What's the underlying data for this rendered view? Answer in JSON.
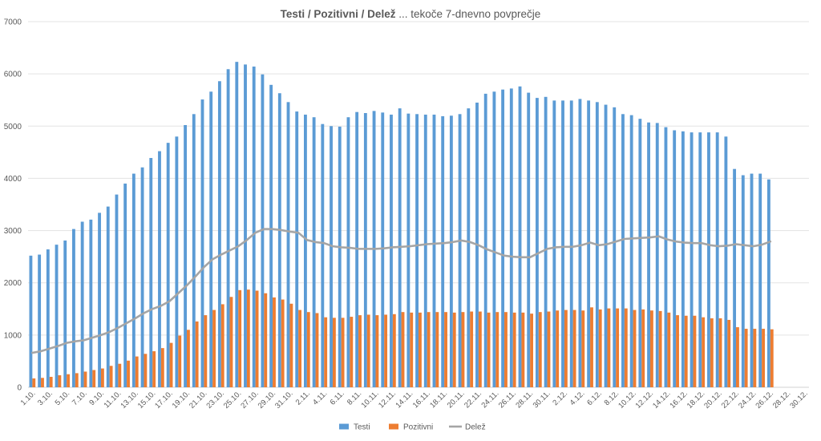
{
  "chart_data": {
    "type": "bar",
    "title_bold": "Testi / Pozitivni / Delež",
    "title_rest": " ... tekoče 7-dnevno povprečje",
    "ylim": [
      0,
      7000
    ],
    "yticks": [
      0,
      1000,
      2000,
      3000,
      4000,
      5000,
      6000,
      7000
    ],
    "grid": true,
    "legend_position": "bottom",
    "dates": [
      "1.10.",
      "2.10.",
      "3.10.",
      "4.10.",
      "5.10.",
      "6.10.",
      "7.10.",
      "8.10.",
      "9.10.",
      "10.10.",
      "11.10.",
      "12.10.",
      "13.10.",
      "14.10.",
      "15.10.",
      "16.10.",
      "17.10.",
      "18.10.",
      "19.10.",
      "20.10.",
      "21.10.",
      "22.10.",
      "23.10.",
      "24.10.",
      "25.10.",
      "26.10.",
      "27.10.",
      "28.10.",
      "29.10.",
      "30.10.",
      "31.10.",
      "1.11.",
      "2.11.",
      "3.11.",
      "4.11.",
      "5.11.",
      "6.11.",
      "7.11.",
      "8.11.",
      "9.11.",
      "10.11.",
      "11.11.",
      "12.11.",
      "13.11.",
      "14.11.",
      "15.11.",
      "16.11.",
      "17.11.",
      "18.11.",
      "19.11.",
      "20.11.",
      "21.11.",
      "22.11.",
      "23.11.",
      "24.11.",
      "25.11.",
      "26.11.",
      "27.11.",
      "28.11.",
      "29.11.",
      "30.11.",
      "1.12.",
      "2.12.",
      "3.12.",
      "4.12.",
      "5.12.",
      "6.12.",
      "7.12.",
      "8.12.",
      "9.12.",
      "10.12.",
      "11.12.",
      "12.12.",
      "13.12.",
      "14.12.",
      "15.12.",
      "16.12.",
      "17.12.",
      "18.12.",
      "19.12.",
      "20.12.",
      "21.12.",
      "22.12.",
      "23.12.",
      "24.12.",
      "25.12.",
      "26.12.",
      "27.12.",
      "28.12.",
      "29.12.",
      "30.12."
    ],
    "xtick_labels": [
      "1.10.",
      "3.10.",
      "5.10.",
      "7.10.",
      "9.10.",
      "11.10.",
      "13.10.",
      "15.10.",
      "17.10.",
      "19.10.",
      "21.10.",
      "23.10.",
      "25.10.",
      "27.10.",
      "29.10.",
      "31.10.",
      "2.11.",
      "4.11.",
      "6.11.",
      "8.11.",
      "10.11.",
      "12.11.",
      "14.11.",
      "16.11.",
      "18.11.",
      "20.11.",
      "22.11.",
      "24.11.",
      "26.11.",
      "28.11.",
      "30.11.",
      "2.12.",
      "4.12.",
      "6.12.",
      "8.12.",
      "10.12.",
      "12.12.",
      "14.12.",
      "16.12.",
      "18.12.",
      "20.12.",
      "22.12.",
      "24.12.",
      "26.12.",
      "28.12.",
      "30.12."
    ],
    "series": [
      {
        "name": "Testi",
        "color": "#5B9BD5",
        "kind": "bar",
        "values": [
          2520,
          2540,
          2640,
          2730,
          2810,
          3030,
          3170,
          3210,
          3340,
          3460,
          3690,
          3900,
          4090,
          4210,
          4390,
          4520,
          4680,
          4800,
          5020,
          5230,
          5510,
          5660,
          5860,
          6090,
          6230,
          6180,
          6140,
          5990,
          5790,
          5630,
          5460,
          5280,
          5220,
          5170,
          5040,
          5000,
          4990,
          5170,
          5270,
          5250,
          5290,
          5260,
          5220,
          5340,
          5240,
          5230,
          5220,
          5220,
          5190,
          5200,
          5230,
          5340,
          5450,
          5620,
          5660,
          5700,
          5720,
          5760,
          5640,
          5540,
          5560,
          5490,
          5490,
          5490,
          5520,
          5490,
          5460,
          5410,
          5360,
          5230,
          5210,
          5140,
          5070,
          5060,
          4980,
          4920,
          4900,
          4880,
          4880,
          4880,
          4880,
          4800,
          4180,
          4060,
          4090,
          4090,
          3980,
          null,
          null,
          null,
          null
        ]
      },
      {
        "name": "Pozitivni",
        "color": "#ED7D31",
        "kind": "bar",
        "values": [
          170,
          180,
          200,
          230,
          250,
          270,
          300,
          330,
          360,
          410,
          450,
          510,
          590,
          640,
          690,
          750,
          850,
          990,
          1100,
          1260,
          1380,
          1480,
          1590,
          1730,
          1860,
          1870,
          1850,
          1800,
          1720,
          1680,
          1600,
          1480,
          1440,
          1420,
          1340,
          1330,
          1330,
          1350,
          1380,
          1390,
          1380,
          1390,
          1400,
          1440,
          1430,
          1430,
          1440,
          1440,
          1440,
          1430,
          1440,
          1450,
          1450,
          1430,
          1440,
          1440,
          1430,
          1430,
          1410,
          1440,
          1450,
          1470,
          1480,
          1480,
          1470,
          1530,
          1490,
          1510,
          1510,
          1510,
          1480,
          1490,
          1470,
          1460,
          1430,
          1380,
          1370,
          1370,
          1340,
          1320,
          1320,
          1290,
          1150,
          1120,
          1120,
          1120,
          1110,
          null,
          null,
          null,
          null
        ]
      },
      {
        "name": "Delež",
        "color": "#A5A5A5",
        "kind": "line",
        "values": [
          660,
          690,
          740,
          790,
          850,
          880,
          900,
          950,
          1000,
          1060,
          1140,
          1230,
          1320,
          1420,
          1500,
          1560,
          1650,
          1800,
          1950,
          2120,
          2300,
          2450,
          2540,
          2620,
          2700,
          2820,
          2960,
          3030,
          3030,
          3010,
          2980,
          2960,
          2820,
          2780,
          2760,
          2700,
          2680,
          2670,
          2650,
          2650,
          2650,
          2660,
          2680,
          2690,
          2700,
          2720,
          2740,
          2750,
          2760,
          2780,
          2810,
          2780,
          2720,
          2640,
          2580,
          2520,
          2500,
          2490,
          2490,
          2570,
          2650,
          2680,
          2690,
          2690,
          2720,
          2770,
          2720,
          2740,
          2790,
          2840,
          2850,
          2860,
          2870,
          2890,
          2830,
          2790,
          2770,
          2760,
          2760,
          2720,
          2700,
          2710,
          2740,
          2720,
          2700,
          2730,
          2790,
          null,
          null,
          null,
          null
        ]
      }
    ]
  }
}
